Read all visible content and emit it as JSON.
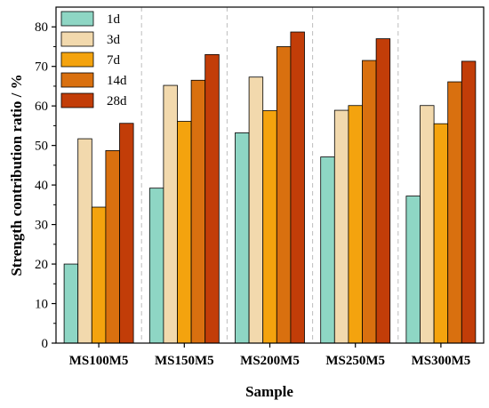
{
  "chart_data": {
    "type": "bar",
    "title": "",
    "xlabel": "Sample",
    "ylabel": "Strength contribution ratio / %",
    "ylim": [
      0,
      85
    ],
    "yticks": [
      0,
      10,
      20,
      30,
      40,
      50,
      60,
      70,
      80
    ],
    "grid": false,
    "category_separators": "dashed",
    "legend_position": "top-left",
    "categories": [
      "MS100M5",
      "MS150M5",
      "MS200M5",
      "MS250M5",
      "MS300M5"
    ],
    "series": [
      {
        "name": "1d",
        "color": "#8ed6c4",
        "values": [
          20.0,
          39.2,
          53.2,
          47.1,
          37.2
        ]
      },
      {
        "name": "3d",
        "color": "#f2d9ad",
        "values": [
          51.7,
          65.2,
          67.3,
          58.9,
          60.1
        ]
      },
      {
        "name": "7d",
        "color": "#f4a30e",
        "values": [
          34.4,
          56.1,
          58.8,
          60.1,
          55.5
        ]
      },
      {
        "name": "14d",
        "color": "#d9700f",
        "values": [
          48.7,
          66.5,
          75.0,
          71.5,
          66.1
        ]
      },
      {
        "name": "28d",
        "color": "#c23d08",
        "values": [
          55.6,
          73.0,
          78.7,
          77.0,
          71.3
        ]
      }
    ]
  }
}
